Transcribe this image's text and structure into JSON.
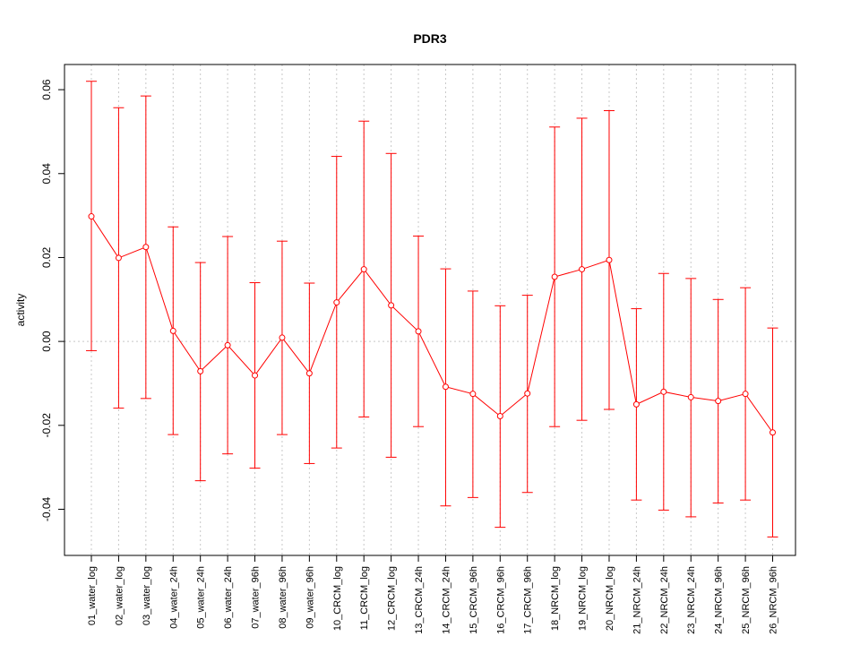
{
  "chart_data": {
    "type": "line",
    "title": "PDR3",
    "xlabel": "",
    "ylabel": "activity",
    "ylim": [
      -0.051,
      0.066
    ],
    "yticks": [
      -0.04,
      -0.02,
      0.0,
      0.02,
      0.04,
      0.06
    ],
    "ytick_labels": [
      "-0.04",
      "-0.02",
      "0.00",
      "0.02",
      "0.04",
      "0.06"
    ],
    "grid": true,
    "colors": {
      "series": "#ff0000",
      "grid": "#c8c8c8",
      "axis": "#000000"
    },
    "categories": [
      "01_water_log",
      "02_water_log",
      "03_water_log",
      "04_water_24h",
      "05_water_24h",
      "06_water_24h",
      "07_water_96h",
      "08_water_96h",
      "09_water_96h",
      "10_CRCM_log",
      "11_CRCM_log",
      "12_CRCM_log",
      "13_CRCM_24h",
      "14_CRCM_24h",
      "15_CRCM_96h",
      "16_CRCM_96h",
      "17_CRCM_96h",
      "18_NRCM_log",
      "19_NRCM_log",
      "20_NRCM_log",
      "21_NRCM_24h",
      "22_NRCM_24h",
      "23_NRCM_24h",
      "24_NRCM_96h",
      "25_NRCM_96h",
      "26_NRCM_96h"
    ],
    "series": [
      {
        "values": [
          0.0298,
          0.0199,
          0.0225,
          0.0025,
          -0.0071,
          -0.0009,
          -0.0081,
          0.0009,
          -0.0076,
          0.0093,
          0.0172,
          0.0086,
          0.0024,
          -0.0108,
          -0.0125,
          -0.0178,
          -0.0124,
          0.0154,
          0.0172,
          0.0194,
          -0.015,
          -0.012,
          -0.0133,
          -0.0142,
          -0.0125,
          -0.0217
        ],
        "upper": [
          0.062,
          0.0557,
          0.0585,
          0.0273,
          0.0188,
          0.025,
          0.014,
          0.0239,
          0.0139,
          0.0441,
          0.0525,
          0.0448,
          0.0251,
          0.0173,
          0.012,
          0.0085,
          0.011,
          0.0511,
          0.0532,
          0.055,
          0.0078,
          0.0162,
          0.015,
          0.01,
          0.0128,
          0.0032
        ],
        "lower": [
          -0.0022,
          -0.0159,
          -0.0136,
          -0.0222,
          -0.0332,
          -0.0268,
          -0.0302,
          -0.0222,
          -0.0291,
          -0.0254,
          -0.018,
          -0.0276,
          -0.0203,
          -0.0392,
          -0.0372,
          -0.0443,
          -0.036,
          -0.0203,
          -0.0188,
          -0.0162,
          -0.0378,
          -0.0402,
          -0.0418,
          -0.0385,
          -0.0378,
          -0.0466
        ]
      }
    ]
  }
}
